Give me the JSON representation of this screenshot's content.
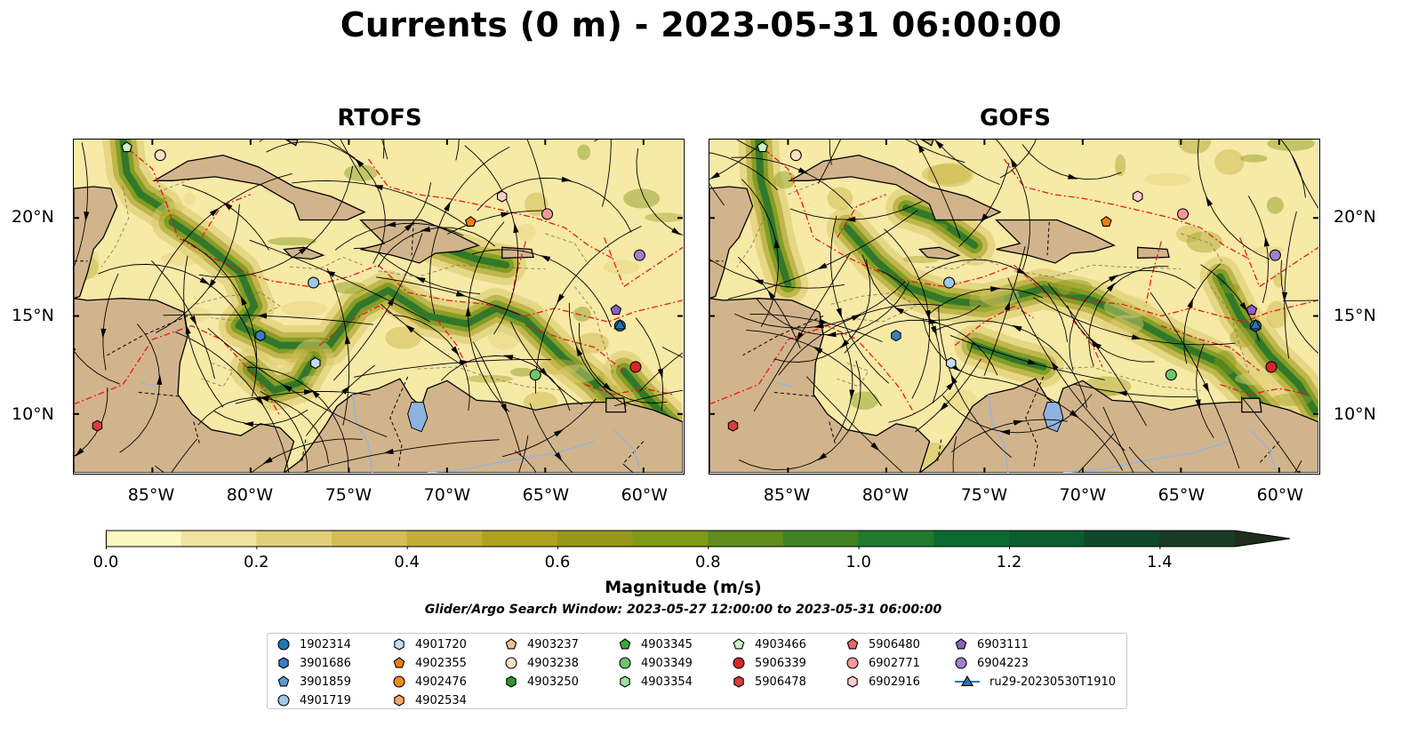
{
  "title": "Currents (0 m) - 2023-05-31 06:00:00",
  "panels": [
    {
      "name": "RTOFS"
    },
    {
      "name": "GOFS"
    }
  ],
  "axes": {
    "lon_ticks": [
      "85°W",
      "80°W",
      "75°W",
      "70°W",
      "65°W",
      "60°W"
    ],
    "lat_ticks": [
      "20°N",
      "15°N",
      "10°N"
    ]
  },
  "colorbar": {
    "label": "Magnitude (m/s)",
    "ticks": [
      "0.0",
      "0.2",
      "0.4",
      "0.6",
      "0.8",
      "1.0",
      "1.2",
      "1.4"
    ],
    "range": [
      0,
      1.5
    ],
    "extend": "max",
    "colors": [
      "#fdf7c3",
      "#f1e3a0",
      "#e2cf7a",
      "#d4bd55",
      "#c4ad37",
      "#b0a11e",
      "#97981a",
      "#7f9a14",
      "#5f8c1c",
      "#3f8224",
      "#1f7a2c",
      "#0b6a30",
      "#0b5c2e",
      "#11472a",
      "#193a22",
      "#1f2e1b"
    ]
  },
  "search_window": "Glider/Argo Search Window: 2023-05-27 12:00:00 to 2023-05-31 06:00:00",
  "legend": {
    "columns": [
      [
        {
          "label": "1902314",
          "marker": "circle",
          "color": "#1f77b4"
        },
        {
          "label": "3901686",
          "marker": "hexagon",
          "color": "#3b7dbd"
        },
        {
          "label": "3901859",
          "marker": "pentagon",
          "color": "#5a9bd0"
        },
        {
          "label": "4901719",
          "marker": "circle",
          "color": "#9ec9ea"
        }
      ],
      [
        {
          "label": "4901720",
          "marker": "hexagon",
          "color": "#c6dcf0"
        },
        {
          "label": "4902355",
          "marker": "pentagon",
          "color": "#f07f0e"
        },
        {
          "label": "4902476",
          "marker": "circle",
          "color": "#f28a24"
        },
        {
          "label": "4902534",
          "marker": "hexagon",
          "color": "#f9a760"
        }
      ],
      [
        {
          "label": "4903237",
          "marker": "pentagon",
          "color": "#fbbf8a"
        },
        {
          "label": "4903238",
          "marker": "circle",
          "color": "#fde0c4"
        },
        {
          "label": "4903250",
          "marker": "hexagon",
          "color": "#2a9a2a"
        }
      ],
      [
        {
          "label": "4903345",
          "marker": "pentagon",
          "color": "#38a838"
        },
        {
          "label": "4903349",
          "marker": "circle",
          "color": "#6cc56c"
        },
        {
          "label": "4903354",
          "marker": "hexagon",
          "color": "#9ae39a"
        }
      ],
      [
        {
          "label": "4903466",
          "marker": "pentagon",
          "color": "#c8f3c4"
        },
        {
          "label": "5906339",
          "marker": "circle",
          "color": "#d62728"
        },
        {
          "label": "5906478",
          "marker": "hexagon",
          "color": "#dc3c3c"
        }
      ],
      [
        {
          "label": "5906480",
          "marker": "pentagon",
          "color": "#e8666c"
        },
        {
          "label": "6902771",
          "marker": "circle",
          "color": "#f29a9b"
        },
        {
          "label": "6902916",
          "marker": "hexagon",
          "color": "#fbcfcf"
        }
      ],
      [
        {
          "label": "6903111",
          "marker": "pentagon",
          "color": "#8e5fc0"
        },
        {
          "label": "6904223",
          "marker": "circle",
          "color": "#a27fd0"
        },
        {
          "label": "ru29-20230530T1910",
          "marker": "triangle-line",
          "color": "#1f77b4"
        }
      ]
    ]
  },
  "map_extent": {
    "lon": [
      -89,
      -58
    ],
    "lat": [
      7,
      24
    ]
  },
  "floats": [
    {
      "id": "1902314",
      "lon": -61.2,
      "lat": 14.5
    },
    {
      "id": "3901686",
      "lon": -79.5,
      "lat": 14.0
    },
    {
      "id": "4901719",
      "lon": -76.8,
      "lat": 16.7
    },
    {
      "id": "4901720",
      "lon": -76.7,
      "lat": 12.6
    },
    {
      "id": "4902355",
      "lon": -68.8,
      "lat": 19.8
    },
    {
      "id": "4903238",
      "lon": -84.6,
      "lat": 23.2
    },
    {
      "id": "4903349",
      "lon": -65.5,
      "lat": 12.0
    },
    {
      "id": "4903466",
      "lon": -86.3,
      "lat": 23.6
    },
    {
      "id": "5906339",
      "lon": -60.4,
      "lat": 12.4
    },
    {
      "id": "5906478",
      "lon": -87.8,
      "lat": 9.4
    },
    {
      "id": "6902771",
      "lon": -64.9,
      "lat": 20.2
    },
    {
      "id": "6902916",
      "lon": -67.2,
      "lat": 21.1
    },
    {
      "id": "6903111",
      "lon": -61.4,
      "lat": 15.3
    },
    {
      "id": "6904223",
      "lon": -60.2,
      "lat": 18.1
    }
  ]
}
